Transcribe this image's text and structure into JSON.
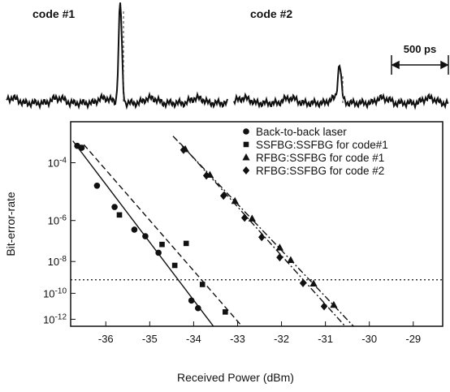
{
  "traces": {
    "labels": [
      "code #1",
      "code #2"
    ],
    "scale_label": "500 ps"
  },
  "chart_data": {
    "type": "scatter",
    "x_label": "Received Power (dBm)",
    "y_label": "Bit-error-rate",
    "xlim": [
      -36.8,
      -28.33
    ],
    "xticks": [
      -36,
      -35,
      -34,
      -33,
      -32,
      -31,
      -30,
      -29
    ],
    "ylim": [
      2.5e-13,
      0.001
    ],
    "yscale": "-log(-log)",
    "yticks": [
      {
        "value": 0.0001,
        "label": "10-4"
      },
      {
        "value": 1e-06,
        "label": "10-6"
      },
      {
        "value": 1e-08,
        "label": "10-8"
      },
      {
        "value": 1e-10,
        "label": "10-10"
      },
      {
        "value": 1e-12,
        "label": "10-12"
      }
    ],
    "legend": "upper right",
    "grid": false,
    "series": [
      {
        "name": "Back-to-back laser",
        "marker": "circle",
        "color": "#111111",
        "x": [
          -36.65,
          -36.55,
          -36.2,
          -35.8,
          -35.35,
          -35.1,
          -34.8,
          -34.05,
          -33.9
        ],
        "values": [
          0.00028,
          0.00025,
          2e-05,
          3.5e-06,
          4e-07,
          2e-07,
          3e-08,
          3e-11,
          8e-12
        ]
      },
      {
        "name": "SSFBG:SSFBG for code#1",
        "marker": "square",
        "color": "#111111",
        "x": [
          -35.69,
          -34.72,
          -34.43,
          -34.17,
          -33.8,
          -33.28
        ],
        "values": [
          1.7e-06,
          8e-08,
          6e-09,
          9e-08,
          4e-10,
          4e-12
        ]
      },
      {
        "name": "RFBG:SSFBG for code #1",
        "marker": "triangle",
        "color": "#111111",
        "x": [
          -34.19,
          -33.63,
          -33.06,
          -32.67,
          -32.04,
          -31.79,
          -31.27,
          -30.81
        ],
        "values": [
          0.00023,
          4.4e-05,
          5.8e-06,
          1.2e-06,
          5.5e-08,
          1.2e-08,
          4.5e-10,
          1.4e-11
        ]
      },
      {
        "name": "RFBG:SSFBG for code #2",
        "marker": "diamond",
        "color": "#111111",
        "x": [
          -34.23,
          -33.71,
          -33.32,
          -32.84,
          -32.45,
          -32.04,
          -31.51,
          -31.03
        ],
        "values": [
          0.00022,
          4.2e-05,
          9e-06,
          1.3e-06,
          1.8e-07,
          1.7e-08,
          4.9e-10,
          1.1e-11
        ]
      }
    ],
    "fits": [
      {
        "style": "solid",
        "x": [
          -36.75,
          -33.55
        ],
        "values": [
          0.00037,
          2.5e-13
        ]
      },
      {
        "style": "dashed",
        "x": [
          -36.5,
          -32.9
        ],
        "values": [
          0.0003,
          2.5e-13
        ]
      },
      {
        "style": "dashdot",
        "x": [
          -34.47,
          -30.36
        ],
        "values": [
          0.00048,
          2.5e-13
        ]
      },
      {
        "style": "dashdot",
        "x": [
          -34.3,
          -30.55
        ],
        "values": [
          0.00032,
          2.5e-13
        ]
      }
    ],
    "hlines": [
      8e-10
    ]
  }
}
